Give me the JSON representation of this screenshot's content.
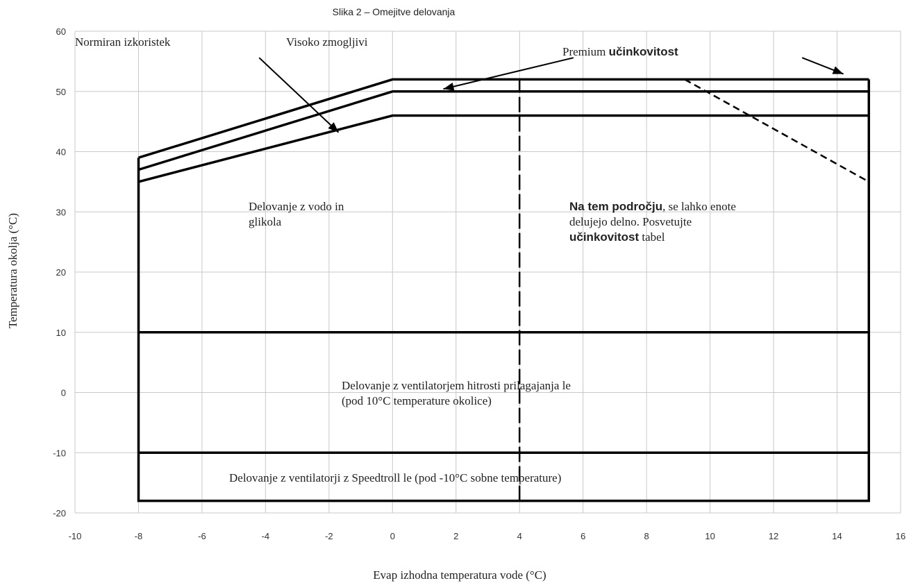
{
  "chart_data": {
    "type": "line",
    "title": "Slika 2 – Omejitve delovanja",
    "xlabel": "Evap izhodna temperatura vode (°C)",
    "ylabel": "Temperatura okolja (°C)",
    "xlim": [
      -10,
      16
    ],
    "ylim": [
      -20,
      60
    ],
    "x_ticks": [
      "-10",
      "-8",
      "-6",
      "-4",
      "-2",
      "0",
      "2",
      "4",
      "6",
      "8",
      "10",
      "12",
      "14",
      "16"
    ],
    "y_ticks": [
      "-20",
      "-10",
      "0",
      "10",
      "20",
      "30",
      "40",
      "50",
      "60"
    ],
    "grid": true,
    "series": [
      {
        "name": "Normiran izkoristek",
        "x": [
          -8,
          0,
          15
        ],
        "y": [
          35,
          46,
          46
        ],
        "style": "solid"
      },
      {
        "name": "Visoko zmogljivi",
        "x": [
          -8,
          0,
          15
        ],
        "y": [
          37,
          50,
          50
        ],
        "style": "solid"
      },
      {
        "name": "Premium učinkovitost",
        "x": [
          -8,
          0,
          15
        ],
        "y": [
          39,
          52,
          52
        ],
        "style": "solid"
      }
    ],
    "envelope": {
      "x": [
        -8,
        -8,
        15,
        15
      ],
      "y": [
        39,
        -18,
        -18,
        52
      ]
    },
    "boundaries": [
      {
        "x": [
          -8,
          15
        ],
        "y": [
          10,
          10
        ],
        "style": "solid"
      },
      {
        "x": [
          -8,
          15
        ],
        "y": [
          -10,
          -10
        ],
        "style": "solid"
      },
      {
        "x": [
          4,
          4
        ],
        "y": [
          -18,
          52
        ],
        "style": "long-dash"
      },
      {
        "x": [
          9.2,
          15
        ],
        "y": [
          52,
          35
        ],
        "style": "dashed"
      }
    ],
    "annotations": {
      "normiran": "Normiran izkoristek",
      "visoko": "Visoko zmogljivi",
      "premium_pre": "Premium ",
      "premium_bold": "učinkovitost",
      "water_glycol_l1": "Delovanje z vodo in",
      "water_glycol_l2": "glikola",
      "partial_bold1": "Na tem področju",
      "partial_t1": ", se lahko enote",
      "partial_t2": "delujejo delno. Posvetujte",
      "partial_bold2": "učinkovitost",
      "partial_t3": " tabel",
      "fan_l1": "Delovanje z ventilatorjem hitrosti prilagajanja le",
      "fan_l2": "(pod 10°C temperature okolice)",
      "speedtroll": "Delovanje z ventilatorji z Speedtroll le (pod -10°C sobne temperature)"
    },
    "arrows": [
      {
        "from": [
          -4.2,
          55.6
        ],
        "to": [
          -1.7,
          43.2
        ],
        "label": "Normiran izkoristek"
      },
      {
        "from": [
          5.7,
          55.6
        ],
        "to": [
          1.6,
          50.4
        ],
        "label": "Visoko zmogljivi"
      },
      {
        "from": [
          12.9,
          55.6
        ],
        "to": [
          14.2,
          52.9
        ],
        "label": "Premium učinkovitost"
      }
    ],
    "colors": {
      "line": "#000000",
      "grid": "#c8c8c8"
    }
  }
}
